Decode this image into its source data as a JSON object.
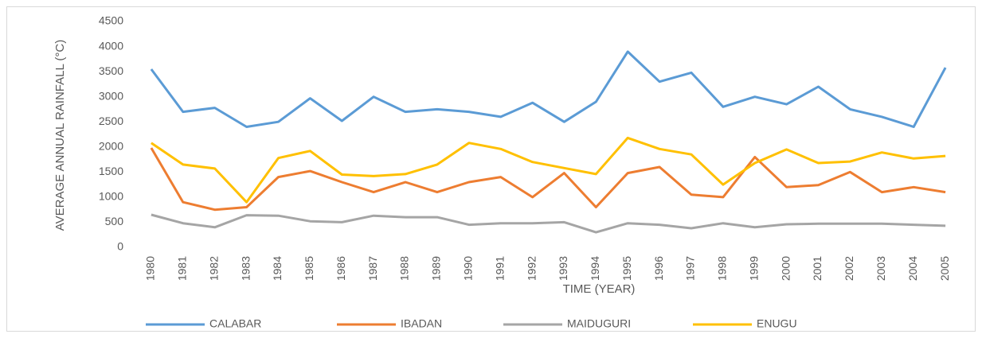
{
  "chart_data": {
    "type": "line",
    "x_label": "TIME (YEAR)",
    "y_label": "AVERAGE ANNUAL RAINFALL (°C)",
    "categories": [
      "1980",
      "1981",
      "1982",
      "1983",
      "1984",
      "1985",
      "1986",
      "1987",
      "1988",
      "1989",
      "1990",
      "1991",
      "1992",
      "1993",
      "1994",
      "1995",
      "1996",
      "1997",
      "1998",
      "1999",
      "2000",
      "2001",
      "2002",
      "2003",
      "2004",
      "2005"
    ],
    "ylim": [
      0,
      4500
    ],
    "yticks": [
      0,
      500,
      1000,
      1500,
      2000,
      2500,
      3000,
      3500,
      4000,
      4500
    ],
    "grid": false,
    "legend": "bottom",
    "series": [
      {
        "name": "CALABAR",
        "color": "#5b9bd5",
        "values": [
          3550,
          2700,
          2780,
          2400,
          2500,
          2970,
          2520,
          3000,
          2700,
          2750,
          2700,
          2600,
          2880,
          2500,
          2900,
          3900,
          3300,
          3480,
          2800,
          3000,
          2850,
          3200,
          2750,
          2600,
          2400,
          3580
        ]
      },
      {
        "name": "IBADAN",
        "color": "#ed7d31",
        "values": [
          1980,
          900,
          750,
          800,
          1400,
          1520,
          1300,
          1100,
          1300,
          1100,
          1300,
          1400,
          1000,
          1480,
          800,
          1480,
          1600,
          1050,
          1000,
          1800,
          1200,
          1240,
          1500,
          1100,
          1200,
          1100
        ]
      },
      {
        "name": "MAIDUGURI",
        "color": "#a5a5a5",
        "values": [
          650,
          480,
          400,
          640,
          630,
          520,
          500,
          630,
          600,
          600,
          450,
          480,
          480,
          500,
          300,
          480,
          450,
          380,
          480,
          400,
          460,
          470,
          470,
          470,
          450,
          430
        ]
      },
      {
        "name": "ENUGU",
        "color": "#ffc000",
        "values": [
          2080,
          1650,
          1570,
          900,
          1780,
          1920,
          1450,
          1420,
          1460,
          1650,
          2080,
          1960,
          1700,
          1580,
          1460,
          2180,
          1960,
          1850,
          1250,
          1680,
          1950,
          1680,
          1710,
          1890,
          1770,
          1820
        ]
      }
    ]
  }
}
